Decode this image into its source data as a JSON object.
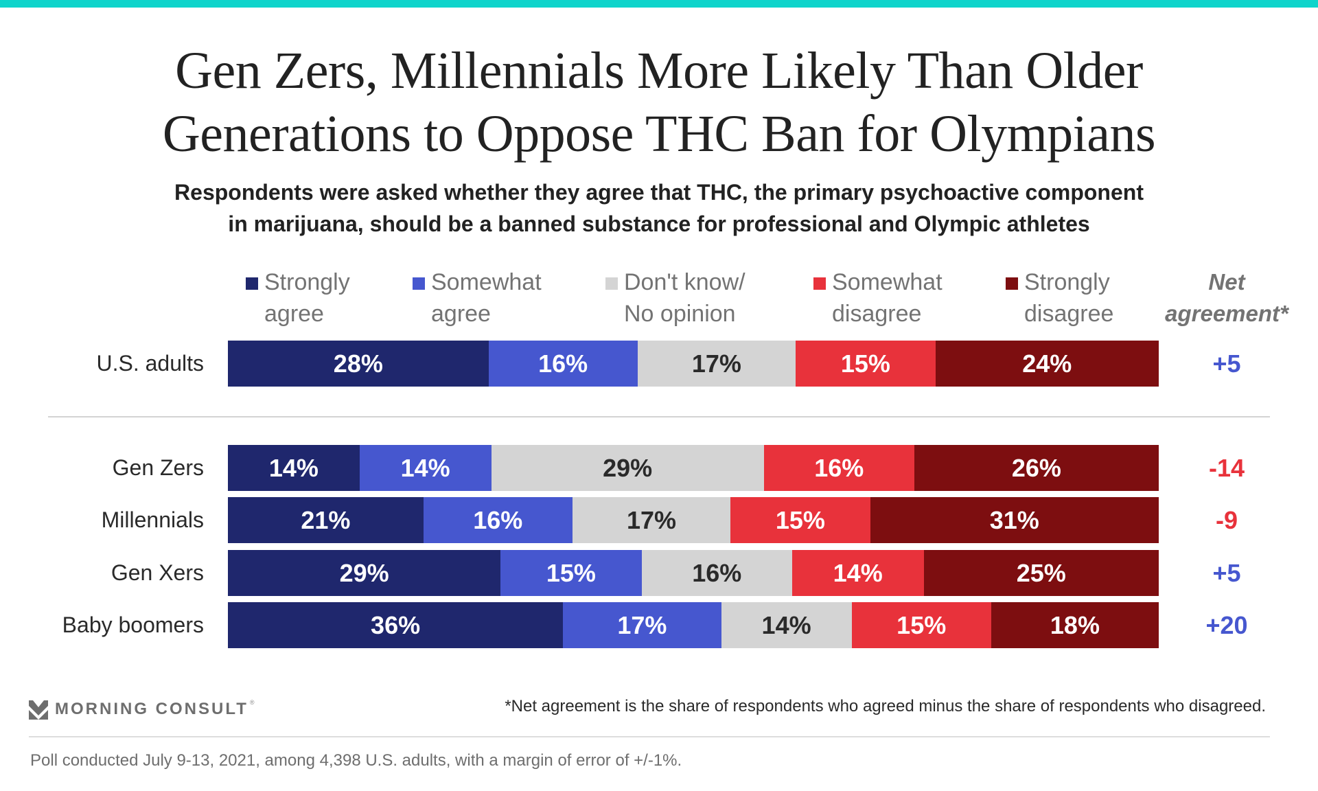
{
  "header": {
    "accent_color": "#0fd4cb",
    "title_lines": [
      "Gen Zers, Millennials More Likely Than Older",
      "Generations to Oppose THC Ban for Olympians"
    ],
    "subtitle_lines": [
      "Respondents were asked whether they agree that THC, the primary psychoactive component",
      "in marijuana, should be a banned substance for professional and Olympic athletes"
    ]
  },
  "legend": [
    {
      "line1": "Strongly",
      "line2": "agree",
      "color": "#1f276d"
    },
    {
      "line1": "Somewhat",
      "line2": "agree",
      "color": "#4657cf"
    },
    {
      "line1": "Don't know/",
      "line2": "No opinion",
      "color": "#d4d4d4"
    },
    {
      "line1": "Somewhat",
      "line2": "disagree",
      "color": "#e8323b"
    },
    {
      "line1": "Strongly",
      "line2": "disagree",
      "color": "#7d0e10"
    }
  ],
  "net_header": {
    "line1": "Net",
    "line2": "agreement*"
  },
  "chart_data": {
    "type": "bar",
    "orientation": "horizontal",
    "stacked": true,
    "title": "Gen Zers, Millennials More Likely Than Older Generations to Oppose THC Ban for Olympians",
    "subtitle": "Respondents were asked whether they agree that THC, the primary psychoactive component in marijuana, should be a banned substance for professional and Olympic athletes",
    "xlabel": "",
    "ylabel": "",
    "xlim": [
      0,
      100
    ],
    "unit": "%",
    "grid": false,
    "legend_position": "top",
    "categories": [
      "U.S. adults",
      "Gen Zers",
      "Millennials",
      "Gen Xers",
      "Baby boomers"
    ],
    "series": [
      {
        "name": "Strongly agree",
        "color": "#1f276d",
        "label_color": "#ffffff",
        "values": [
          28,
          14,
          21,
          29,
          36
        ]
      },
      {
        "name": "Somewhat agree",
        "color": "#4657cf",
        "label_color": "#ffffff",
        "values": [
          16,
          14,
          16,
          15,
          17
        ]
      },
      {
        "name": "Don't know/No opinion",
        "color": "#d4d4d4",
        "label_color": "#2a2a2a",
        "values": [
          17,
          29,
          17,
          16,
          14
        ]
      },
      {
        "name": "Somewhat disagree",
        "color": "#e8323b",
        "label_color": "#ffffff",
        "values": [
          15,
          16,
          15,
          14,
          15
        ]
      },
      {
        "name": "Strongly disagree",
        "color": "#7d0e10",
        "label_color": "#ffffff",
        "values": [
          24,
          26,
          31,
          25,
          18
        ]
      }
    ],
    "net_agreement": {
      "label": "Net agreement*",
      "values": [
        "+5",
        "-14",
        "-9",
        "+5",
        "+20"
      ],
      "positive_color": "#4657cf",
      "negative_color": "#e8323b"
    },
    "groups_separated_after": [
      "U.S. adults"
    ]
  },
  "footer": {
    "brand": "MORNING CONSULT",
    "brand_mark": "®",
    "footnote": "*Net agreement is the share of respondents who agreed minus the share of respondents who disagreed.",
    "poll_note": "Poll conducted July 9-13, 2021, among 4,398 U.S. adults, with a margin of error of +/-1%."
  }
}
